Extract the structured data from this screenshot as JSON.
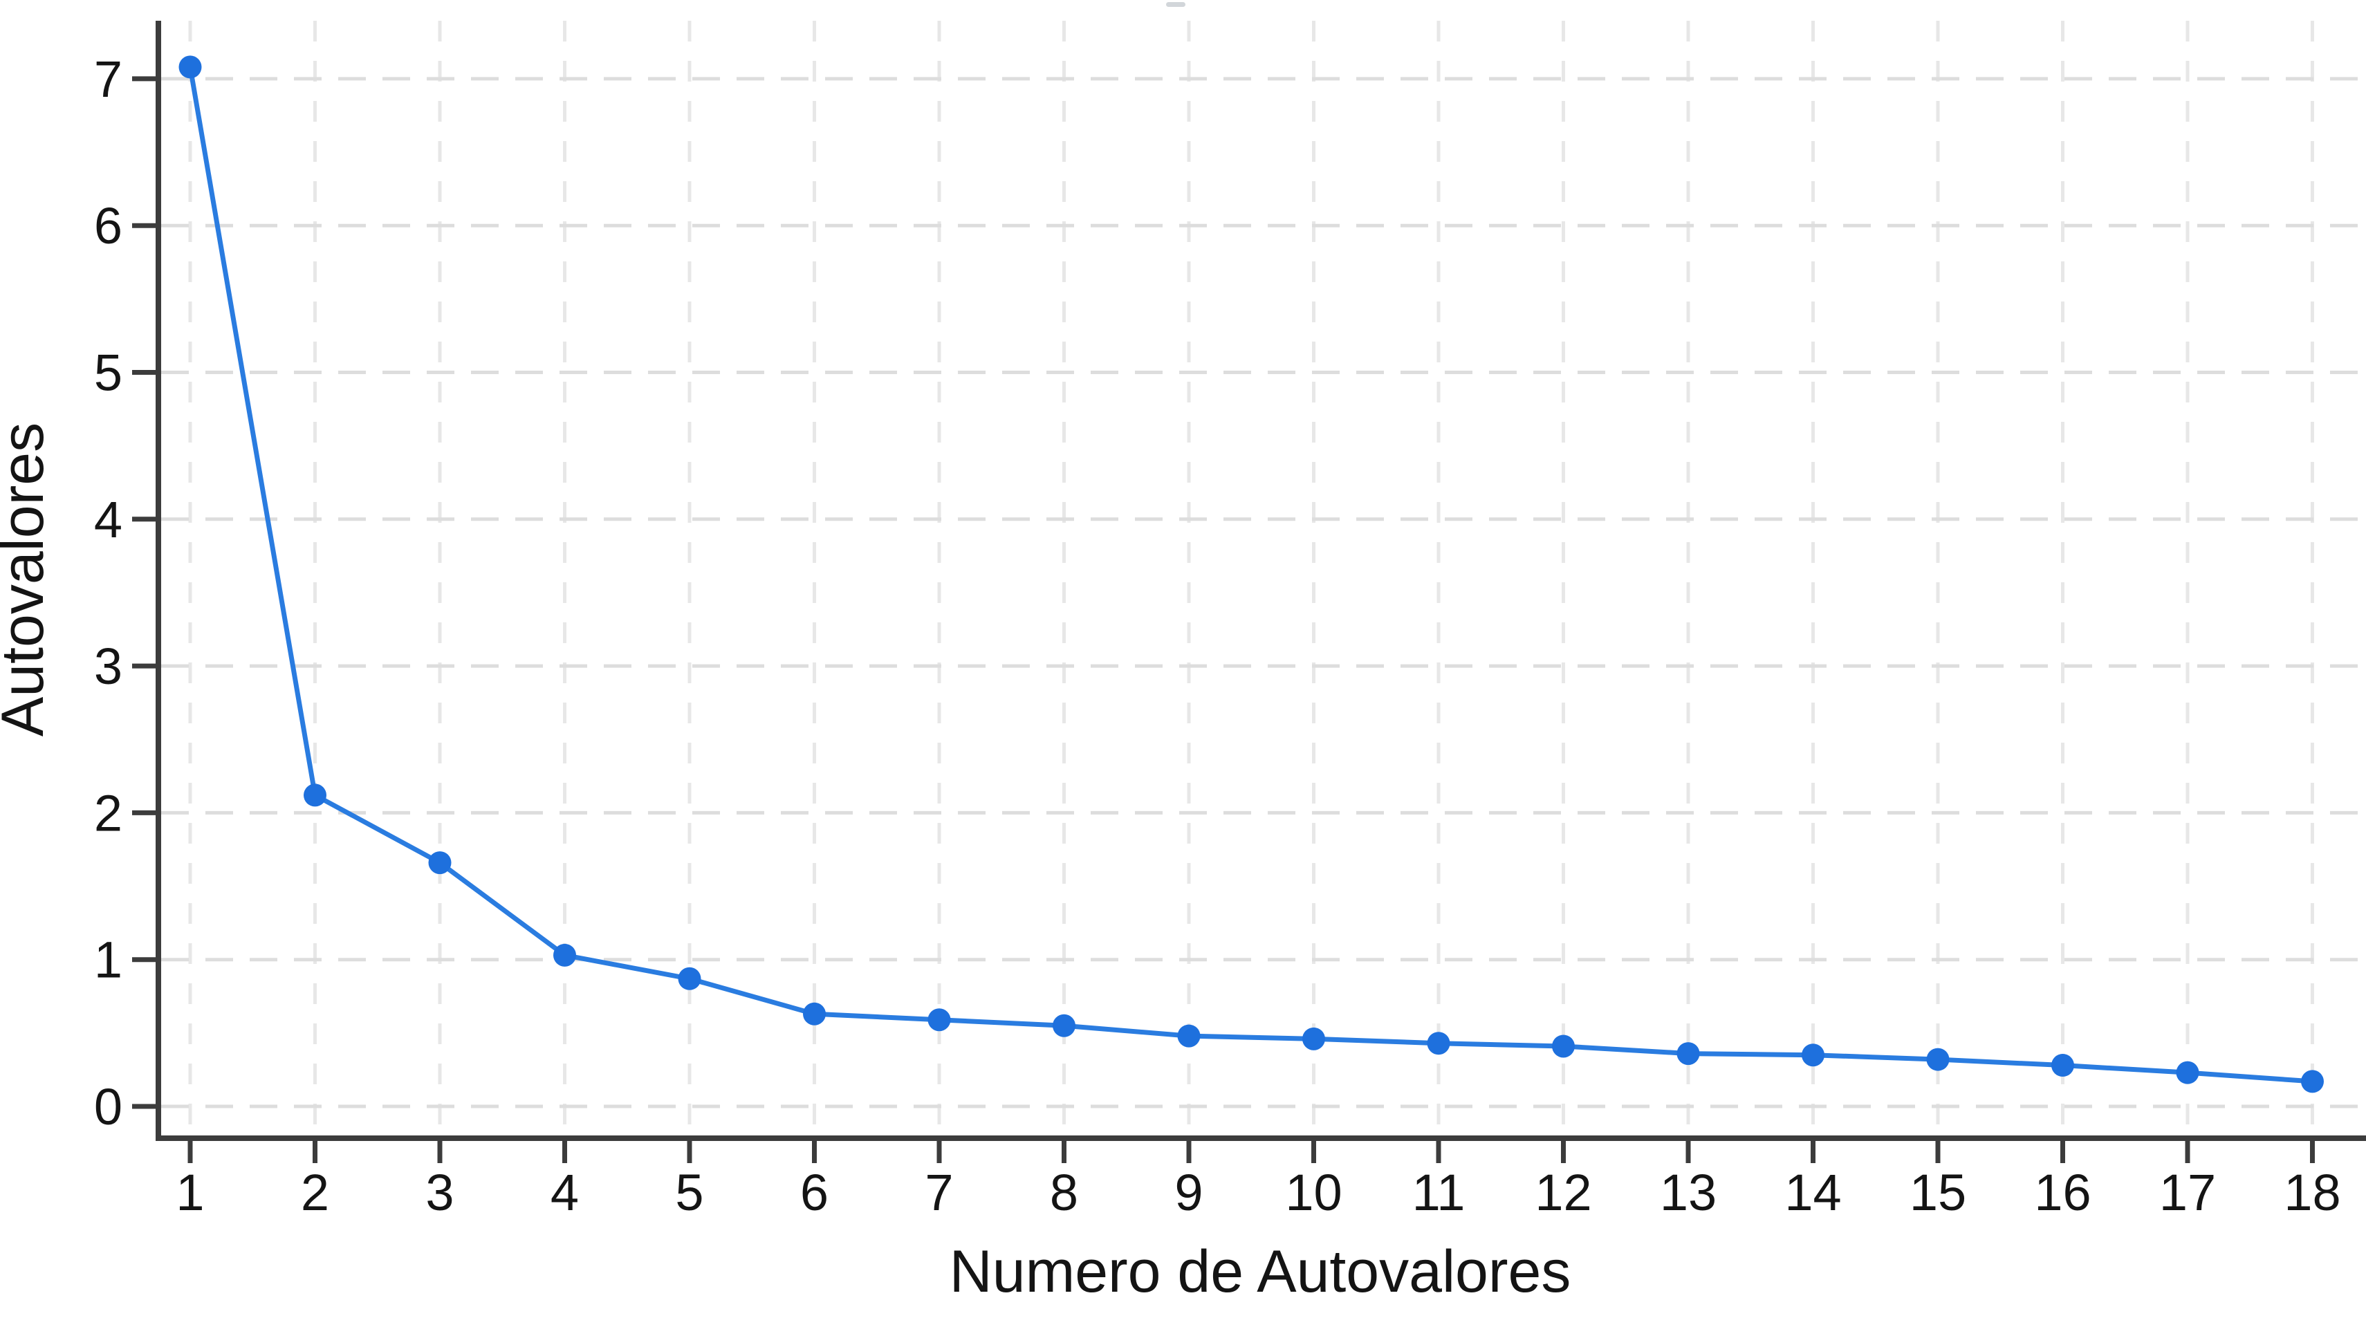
{
  "figure": {
    "background": "#ffffff"
  },
  "chart_data": {
    "type": "line",
    "title": "",
    "xlabel": "Numero de Autovalores",
    "ylabel": "Autovalores",
    "series": [
      {
        "name": "Autovalores",
        "x": [
          1,
          2,
          3,
          4,
          5,
          6,
          7,
          8,
          9,
          10,
          11,
          12,
          13,
          14,
          15,
          16,
          17,
          18
        ],
        "y": [
          7.08,
          2.12,
          1.66,
          1.03,
          0.87,
          0.63,
          0.59,
          0.55,
          0.48,
          0.46,
          0.43,
          0.41,
          0.36,
          0.35,
          0.32,
          0.28,
          0.23,
          0.17
        ]
      }
    ],
    "xticks": [
      1,
      2,
      3,
      4,
      5,
      6,
      7,
      8,
      9,
      10,
      11,
      12,
      13,
      14,
      15,
      16,
      17,
      18
    ],
    "yticks": [
      0,
      1,
      2,
      3,
      4,
      5,
      6,
      7
    ],
    "xlim": [
      1,
      18
    ],
    "ylim": [
      0,
      7.3
    ],
    "grid": {
      "horizontal": "dashed",
      "vertical": "dashed"
    },
    "legend": "none",
    "marker": "circle",
    "colors": {
      "line": "#2A7CE0",
      "marker": "#1E70DD",
      "axis": "#3C3C3C",
      "grid_horizontal": "#DDDDDD",
      "grid_vertical": "#E7E7E7",
      "text": "#141414"
    }
  }
}
